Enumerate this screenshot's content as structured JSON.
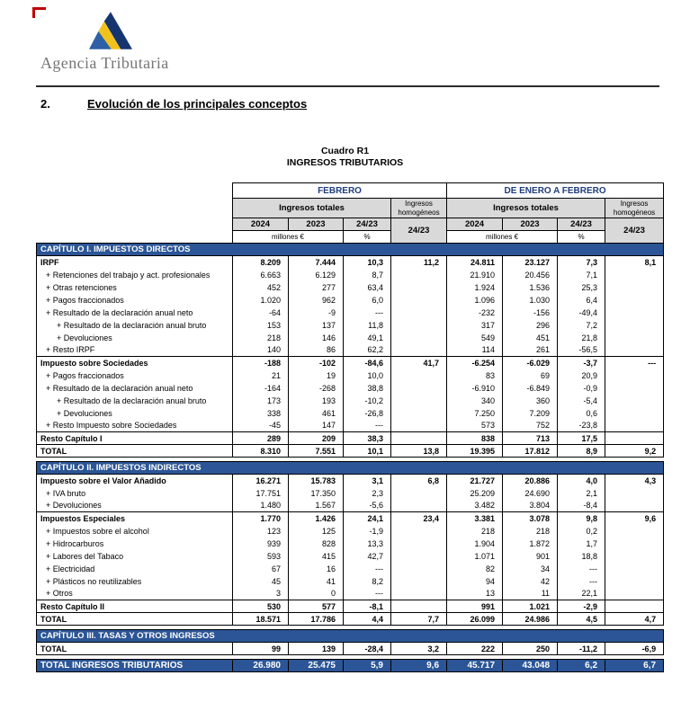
{
  "page": {
    "brand": "Agencia Tributaria",
    "heading_number": "2.",
    "heading_title": "Evolución de los principales conceptos"
  },
  "table": {
    "caption_line1": "Cuadro R1",
    "caption_line2": "INGRESOS TRIBUTARIOS",
    "group_headers": [
      "FEBRERO",
      "DE ENERO A FEBRERO"
    ],
    "subheaders": {
      "ingresos_totales": "Ingresos totales",
      "ingresos_homogeneos": "Ingresos homogéneos",
      "years": [
        "2024",
        "2023",
        "24/23"
      ],
      "homogeneos_ratio": "24/23",
      "unit_millones": "millones €",
      "unit_percent": "%"
    },
    "rows": [
      {
        "type": "section",
        "label": "CAPÍTULO I. IMPUESTOS DIRECTOS"
      },
      {
        "type": "bold",
        "label": "IRPF",
        "values": [
          "8.209",
          "7.444",
          "10,3",
          "11,2",
          "24.811",
          "23.127",
          "7,3",
          "8,1"
        ]
      },
      {
        "type": "item",
        "label": "+ Retenciones del trabajo y act. profesionales",
        "values": [
          "6.663",
          "6.129",
          "8,7",
          "",
          "21.910",
          "20.456",
          "7,1",
          ""
        ]
      },
      {
        "type": "item",
        "label": "+ Otras retenciones",
        "values": [
          "452",
          "277",
          "63,4",
          "",
          "1.924",
          "1.536",
          "25,3",
          ""
        ]
      },
      {
        "type": "item",
        "label": "+ Pagos fraccionados",
        "values": [
          "1.020",
          "962",
          "6,0",
          "",
          "1.096",
          "1.030",
          "6,4",
          ""
        ]
      },
      {
        "type": "item",
        "label": "+ Resultado de la declaración anual neto",
        "values": [
          "-64",
          "-9",
          "---",
          "",
          "-232",
          "-156",
          "-49,4",
          ""
        ]
      },
      {
        "type": "item2",
        "label": "+ Resultado de la declaración anual bruto",
        "values": [
          "153",
          "137",
          "11,8",
          "",
          "317",
          "296",
          "7,2",
          ""
        ]
      },
      {
        "type": "item2",
        "label": "+ Devoluciones",
        "values": [
          "218",
          "146",
          "49,1",
          "",
          "549",
          "451",
          "21,8",
          ""
        ]
      },
      {
        "type": "item",
        "label": "+ Resto IRPF",
        "values": [
          "140",
          "86",
          "62,2",
          "",
          "114",
          "261",
          "-56,5",
          ""
        ]
      },
      {
        "type": "bold",
        "label": "Impuesto sobre Sociedades",
        "values": [
          "-188",
          "-102",
          "-84,6",
          "41,7",
          "-6.254",
          "-6.029",
          "-3,7",
          "---"
        ]
      },
      {
        "type": "item",
        "label": "+ Pagos fraccionados",
        "values": [
          "21",
          "19",
          "10,0",
          "",
          "83",
          "69",
          "20,9",
          ""
        ]
      },
      {
        "type": "item",
        "label": "+ Resultado de la declaración anual neto",
        "values": [
          "-164",
          "-268",
          "38,8",
          "",
          "-6.910",
          "-6.849",
          "-0,9",
          ""
        ]
      },
      {
        "type": "item2",
        "label": "+ Resultado de la declaración anual bruto",
        "values": [
          "173",
          "193",
          "-10,2",
          "",
          "340",
          "360",
          "-5,4",
          ""
        ]
      },
      {
        "type": "item2",
        "label": "+ Devoluciones",
        "values": [
          "338",
          "461",
          "-26,8",
          "",
          "7.250",
          "7.209",
          "0,6",
          ""
        ]
      },
      {
        "type": "item",
        "label": "+ Resto Impuesto sobre Sociedades",
        "values": [
          "-45",
          "147",
          "---",
          "",
          "573",
          "752",
          "-23,8",
          ""
        ]
      },
      {
        "type": "bold",
        "label": "Resto Capítulo I",
        "values": [
          "289",
          "209",
          "38,3",
          "",
          "838",
          "713",
          "17,5",
          ""
        ]
      },
      {
        "type": "total",
        "label": "TOTAL",
        "values": [
          "8.310",
          "7.551",
          "10,1",
          "13,8",
          "19.395",
          "17.812",
          "8,9",
          "9,2"
        ]
      },
      {
        "type": "section",
        "label": "CAPÍTULO II. IMPUESTOS INDIRECTOS"
      },
      {
        "type": "bold",
        "label": "Impuesto sobre el Valor Añadido",
        "values": [
          "16.271",
          "15.783",
          "3,1",
          "6,8",
          "21.727",
          "20.886",
          "4,0",
          "4,3"
        ]
      },
      {
        "type": "item",
        "label": "+ IVA bruto",
        "values": [
          "17.751",
          "17.350",
          "2,3",
          "",
          "25.209",
          "24.690",
          "2,1",
          ""
        ]
      },
      {
        "type": "item",
        "label": "+ Devoluciones",
        "values": [
          "1.480",
          "1.567",
          "-5,6",
          "",
          "3.482",
          "3.804",
          "-8,4",
          ""
        ]
      },
      {
        "type": "bold",
        "label": "Impuestos Especiales",
        "values": [
          "1.770",
          "1.426",
          "24,1",
          "23,4",
          "3.381",
          "3.078",
          "9,8",
          "9,6"
        ]
      },
      {
        "type": "item",
        "label": "+ Impuestos sobre el alcohol",
        "values": [
          "123",
          "125",
          "-1,9",
          "",
          "218",
          "218",
          "0,2",
          ""
        ]
      },
      {
        "type": "item",
        "label": "+ Hidrocarburos",
        "values": [
          "939",
          "828",
          "13,3",
          "",
          "1.904",
          "1.872",
          "1,7",
          ""
        ]
      },
      {
        "type": "item",
        "label": "+ Labores del Tabaco",
        "values": [
          "593",
          "415",
          "42,7",
          "",
          "1.071",
          "901",
          "18,8",
          ""
        ]
      },
      {
        "type": "item",
        "label": "+ Electricidad",
        "values": [
          "67",
          "16",
          "---",
          "",
          "82",
          "34",
          "---",
          ""
        ]
      },
      {
        "type": "item",
        "label": "+ Plásticos no reutilizables",
        "values": [
          "45",
          "41",
          "8,2",
          "",
          "94",
          "42",
          "---",
          ""
        ]
      },
      {
        "type": "item",
        "label": "+ Otros",
        "values": [
          "3",
          "0",
          "---",
          "",
          "13",
          "11",
          "22,1",
          ""
        ]
      },
      {
        "type": "bold",
        "label": "Resto Capítulo II",
        "values": [
          "530",
          "577",
          "-8,1",
          "",
          "991",
          "1.021",
          "-2,9",
          ""
        ]
      },
      {
        "type": "total",
        "label": "TOTAL",
        "values": [
          "18.571",
          "17.786",
          "4,4",
          "7,7",
          "26.099",
          "24.986",
          "4,5",
          "4,7"
        ]
      },
      {
        "type": "section",
        "label": "CAPÍTULO III. TASAS Y OTROS INGRESOS"
      },
      {
        "type": "total",
        "label": "TOTAL",
        "values": [
          "99",
          "139",
          "-28,4",
          "3,2",
          "222",
          "250",
          "-11,2",
          "-6,9"
        ]
      },
      {
        "type": "grand",
        "label": "TOTAL INGRESOS TRIBUTARIOS",
        "values": [
          "26.980",
          "25.475",
          "5,9",
          "9,6",
          "45.717",
          "43.048",
          "6,2",
          "6,7"
        ]
      }
    ]
  },
  "colors": {
    "navy": "#2B5596",
    "header_gray": "#D9D9D9",
    "group_text_navy": "#1F3D7A",
    "logo_dark_blue": "#16356F",
    "logo_light_blue": "#2F5FA5",
    "logo_yellow": "#F2C21C",
    "crop_mark_red": "#C00000"
  }
}
